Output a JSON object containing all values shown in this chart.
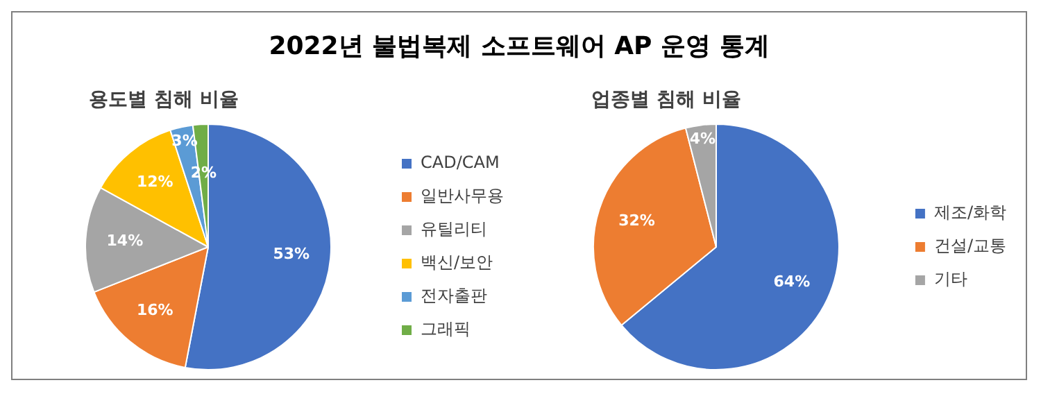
{
  "chart_data": [
    {
      "type": "pie",
      "title": "2022년 불법복제 소프트웨어 AP 운영 통계",
      "subtitle": "용도별 침해 비율",
      "categories": [
        "CAD/CAM",
        "일반사무용",
        "유틸리티",
        "백신/보안",
        "전자출판",
        "그래픽"
      ],
      "values": [
        53,
        16,
        14,
        12,
        3,
        2
      ],
      "colors": [
        "#4472c4",
        "#ed7d31",
        "#a5a5a5",
        "#ffc000",
        "#5b9bd5",
        "#70ad47"
      ],
      "value_labels": [
        "53%",
        "16%",
        "14%",
        "12%",
        "3%",
        "2%"
      ],
      "legend": "right"
    },
    {
      "type": "pie",
      "subtitle": "업종별 침해 비율",
      "categories": [
        "제조/화학",
        "건설/교통",
        "기타"
      ],
      "values": [
        64,
        32,
        4
      ],
      "colors": [
        "#4472c4",
        "#ed7d31",
        "#a5a5a5"
      ],
      "value_labels": [
        "64%",
        "32%",
        "4%"
      ],
      "legend": "right"
    }
  ]
}
